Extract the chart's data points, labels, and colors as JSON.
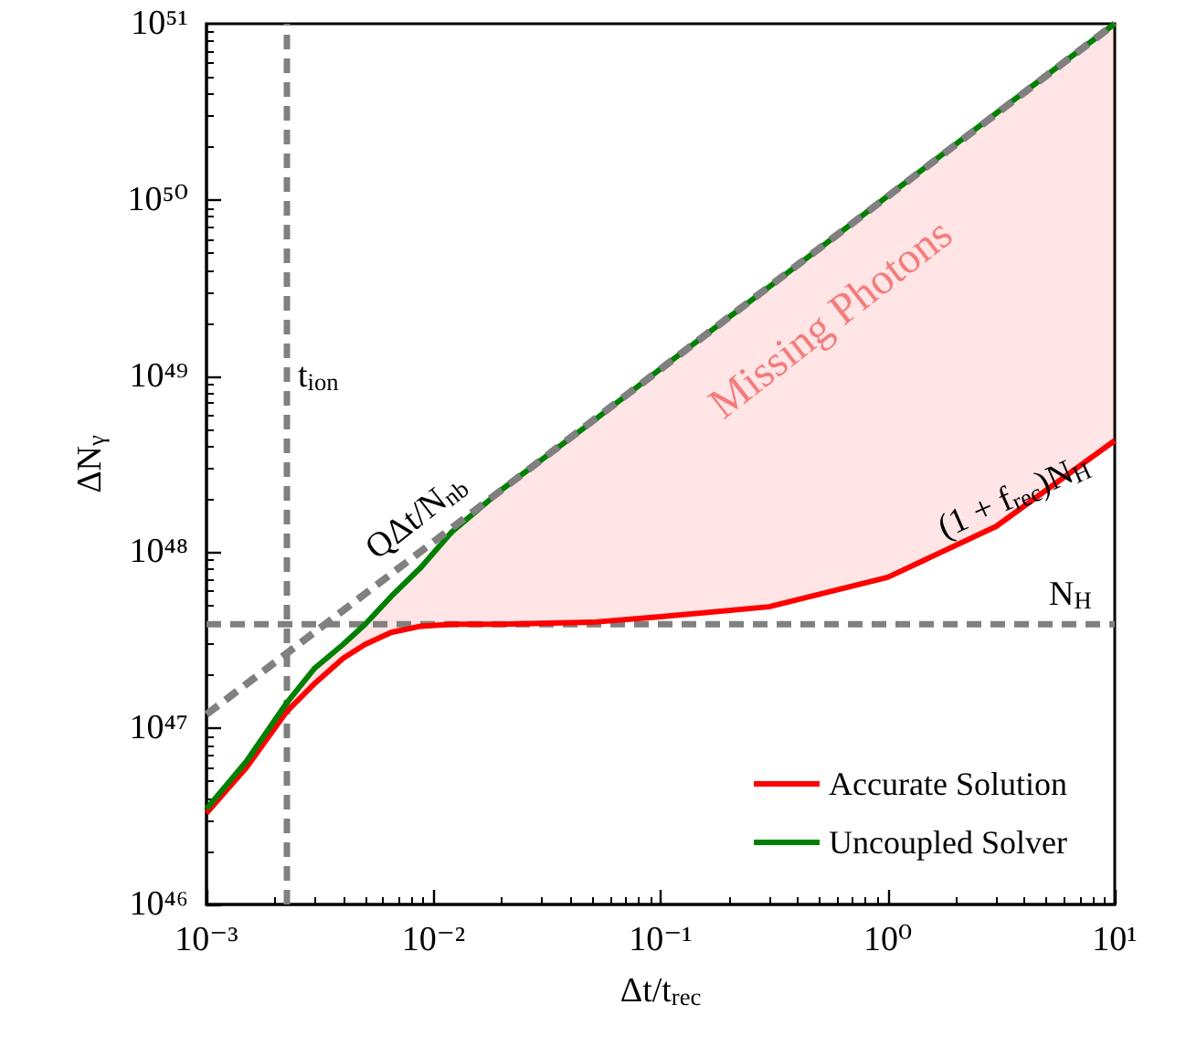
{
  "chart_data": {
    "type": "line",
    "xlabel": "Δt/t$_{rec}$",
    "ylabel": "ΔN$_{γ}$",
    "log": "xy",
    "grid": false,
    "legend": "bottom right",
    "marker": "none",
    "xlim": [
      0.001,
      10
    ],
    "ylim": [
      1e+46,
      1e+51
    ],
    "xticks": [
      {
        "value": 0.001,
        "label": "10⁻³"
      },
      {
        "value": 0.01,
        "label": "10⁻²"
      },
      {
        "value": 0.1,
        "label": "10⁻¹"
      },
      {
        "value": 1,
        "label": "10⁰"
      },
      {
        "value": 10,
        "label": "10¹"
      }
    ],
    "yticks": [
      {
        "value": 1e+46,
        "label": "10⁴⁶"
      },
      {
        "value": 1e+47,
        "label": "10⁴⁷"
      },
      {
        "value": 1e+48,
        "label": "10⁴⁸"
      },
      {
        "value": 1e+49,
        "label": "10⁴⁹"
      },
      {
        "value": 1e+50,
        "label": "10⁵⁰"
      },
      {
        "value": 1e+51,
        "label": "10⁵¹"
      }
    ],
    "series": [
      {
        "name": "Accurate Solution",
        "color": "#ff0000",
        "line_style": "solid",
        "x": [
          0.001,
          0.0015,
          0.00226,
          0.003,
          0.004,
          0.005,
          0.0065,
          0.0088,
          0.012,
          0.02,
          0.05,
          0.1,
          0.3,
          1,
          3,
          10
        ],
        "values": [
          3.3e+46,
          6e+46,
          1.25e+47,
          1.8e+47,
          2.5e+47,
          3e+47,
          3.5e+47,
          3.8e+47,
          3.9e+47,
          3.9e+47,
          4e+47,
          4.3e+47,
          4.9e+47,
          7.2e+47,
          1.4e+48,
          4.3e+48
        ],
        "lower": [
          3.3e+46,
          6e+46,
          1.25e+47,
          1.8e+47,
          2.5e+47,
          3e+47,
          3.5e+47,
          3.8e+47,
          3.9e+47,
          3.9e+47,
          4e+47,
          4.3e+47,
          4.9e+47,
          7.2e+47,
          1.4e+48,
          4.3e+48
        ],
        "upper": [
          3.5e+46,
          6.5e+46,
          1.4e+47,
          2.2e+47,
          3e+47,
          3.9e+47,
          5.6e+47,
          8.2e+47,
          1.3e+48,
          2.27e+48,
          5.5e+48,
          1.1e+49,
          3.2e+49,
          1.05e+50,
          3.1e+50,
          1e+51
        ]
      },
      {
        "name": "Uncoupled Solver",
        "color": "#008000",
        "line_style": "solid",
        "x": [
          0.001,
          0.0015,
          0.00226,
          0.003,
          0.004,
          0.005,
          0.0065,
          0.0088,
          0.012,
          0.02,
          0.05,
          0.1,
          0.3,
          1,
          3,
          10
        ],
        "values": [
          3.5e+46,
          6.5e+46,
          1.4e+47,
          2.2e+47,
          3e+47,
          3.9e+47,
          5.6e+47,
          8.2e+47,
          1.3e+48,
          2.27e+48,
          5.5e+48,
          1.1e+49,
          3.2e+49,
          1.05e+50,
          3.1e+50,
          1e+51
        ]
      },
      {
        "color": "#808080",
        "line_style": "dashed",
        "x": [
          0.001,
          10
        ],
        "values": [
          1.2e+47,
          1e+51
        ]
      }
    ],
    "ref_lines": [
      {
        "axis": "x",
        "value": 0.00226,
        "label": "t$_{ion}$",
        "color": "#808080",
        "line_style": "dashed"
      },
      {
        "axis": "y",
        "value": 3.9e+47,
        "label": "N$_{H}$",
        "color": "#808080",
        "line_style": "dashed"
      }
    ],
    "annotations": [
      "Missing Photons",
      "QΔt/N$_{nb}$",
      "(1 + f$_{rec}$)N$_{H}$"
    ]
  }
}
